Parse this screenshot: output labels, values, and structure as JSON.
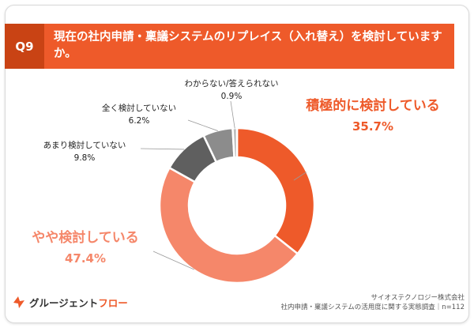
{
  "header": {
    "question_number": "Q9",
    "title": "現在の社内申請・稟議システムのリプレイス（入れ替え）を検討していますか。"
  },
  "chart_data": {
    "type": "pie",
    "donut": true,
    "categories": [
      "積極的に検討している",
      "やや検討している",
      "あまり検討していない",
      "全く検討していない",
      "わからない/答えられない"
    ],
    "values": [
      35.7,
      47.4,
      9.8,
      6.2,
      0.9
    ],
    "labels": [
      "35.7%",
      "47.4%",
      "9.8%",
      "6.2%",
      "0.9%"
    ],
    "colors": [
      "#ee5a2a",
      "#f5876a",
      "#5f5f5f",
      "#8c8c8c",
      "#bdbdbd"
    ]
  },
  "footer": {
    "logo_text_1": "グルージェント",
    "logo_text_2": "フロー",
    "source_line_1": "サイオステクノロジー株式会社",
    "source_line_2": "社内申請・稟議システムの活用度に関する実態調査｜n=112"
  }
}
